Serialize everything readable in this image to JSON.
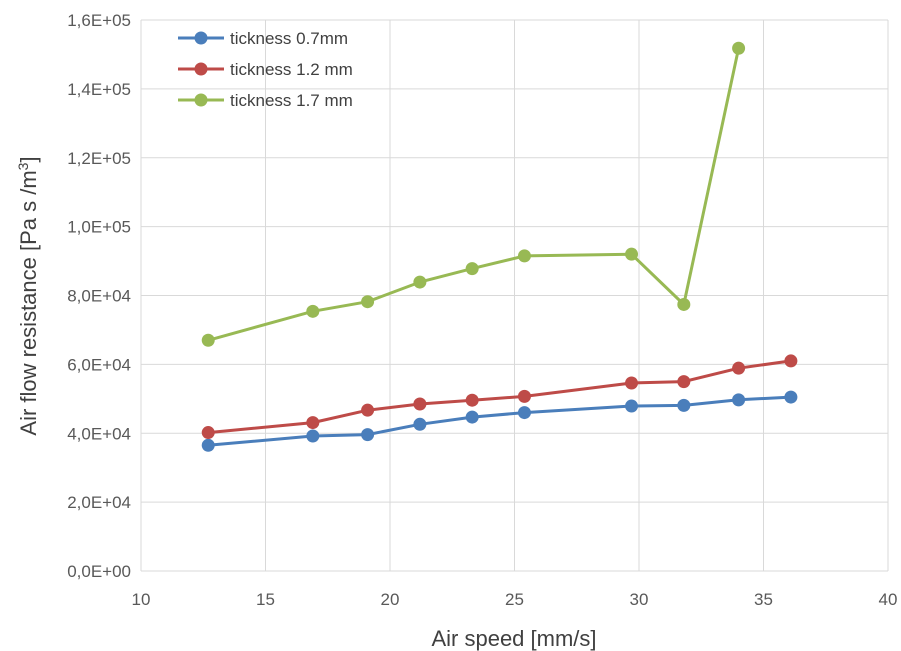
{
  "chart_data": {
    "type": "line",
    "xlabel": "Air speed [mm/s]",
    "ylabel": "Air flow resistance [Pa s /m",
    "ylabel_sup": "3",
    "ylabel_end": "]",
    "xlim": [
      10,
      40
    ],
    "ylim": [
      0,
      160000
    ],
    "x_ticks": [
      10,
      15,
      20,
      25,
      30,
      35,
      40
    ],
    "x_tick_labels": [
      "10",
      "15",
      "20",
      "25",
      "30",
      "35",
      "40"
    ],
    "y_ticks": [
      0,
      20000,
      40000,
      60000,
      80000,
      100000,
      120000,
      140000,
      160000
    ],
    "y_tick_labels": [
      "0,0E+00",
      "2,0E+04",
      "4,0E+04",
      "6,0E+04",
      "8,0E+04",
      "1,0E+05",
      "1,2E+05",
      "1,4E+05",
      "1,6E+05"
    ],
    "grid": true,
    "legend_position": "top-left",
    "series": [
      {
        "name": "tickness 0.7mm",
        "color": "#4a7ebb",
        "points": [
          [
            12.7,
            36500
          ],
          [
            16.9,
            39200
          ],
          [
            19.1,
            39600
          ],
          [
            21.2,
            42600
          ],
          [
            23.3,
            44700
          ],
          [
            25.4,
            46000
          ],
          [
            29.7,
            47900
          ],
          [
            31.8,
            48100
          ],
          [
            34.0,
            49700
          ],
          [
            36.1,
            50500
          ]
        ]
      },
      {
        "name": "tickness 1.2 mm",
        "color": "#be4b48",
        "points": [
          [
            12.7,
            40200
          ],
          [
            16.9,
            43100
          ],
          [
            19.1,
            46700
          ],
          [
            21.2,
            48500
          ],
          [
            23.3,
            49600
          ],
          [
            25.4,
            50700
          ],
          [
            29.7,
            54600
          ],
          [
            31.8,
            55000
          ],
          [
            34.0,
            58900
          ],
          [
            36.1,
            61000
          ]
        ]
      },
      {
        "name": "tickness 1.7 mm",
        "color": "#98b954",
        "points": [
          [
            12.7,
            67000
          ],
          [
            16.9,
            75400
          ],
          [
            19.1,
            78200
          ],
          [
            21.2,
            83900
          ],
          [
            23.3,
            87800
          ],
          [
            25.4,
            91500
          ],
          [
            29.7,
            92000
          ],
          [
            31.8,
            77400
          ],
          [
            34.0,
            151800
          ]
        ]
      }
    ]
  }
}
